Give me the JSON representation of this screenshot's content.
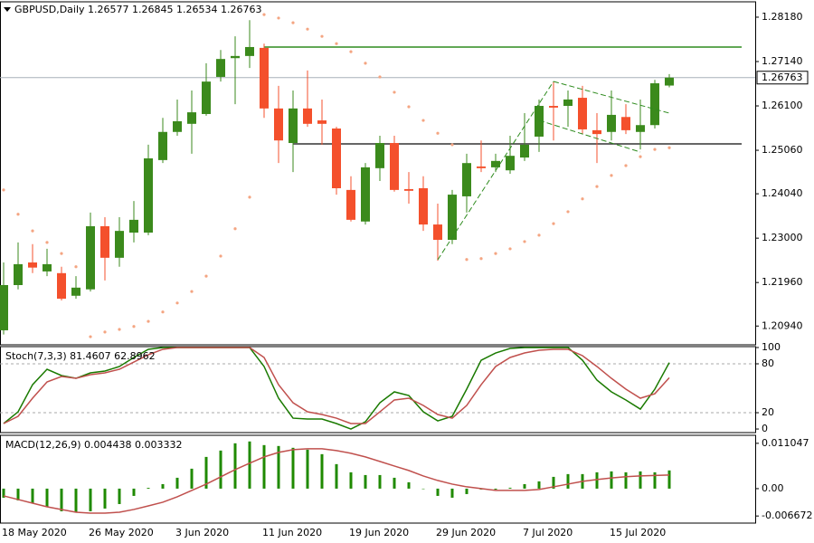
{
  "chart_data": [
    {
      "type": "candlestick",
      "title": "GBPUSD,Daily  1.26577 1.26845 1.26534 1.26763",
      "categories": [
        "18 May 2020",
        null,
        null,
        null,
        null,
        null,
        "26 May 2020",
        null,
        null,
        null,
        null,
        null,
        "3 Jun 2020",
        null,
        null,
        null,
        null,
        null,
        "11 Jun 2020",
        null,
        null,
        null,
        null,
        null,
        "19 Jun 2020",
        null,
        null,
        null,
        null,
        null,
        "29 Jun 2020",
        null,
        null,
        null,
        null,
        null,
        "7 Jul 2020",
        null,
        null,
        null,
        null,
        null,
        "15 Jul 2020",
        null,
        null,
        null,
        null
      ],
      "open": [
        1.2084,
        1.219,
        1.2243,
        1.2222,
        1.2218,
        1.2165,
        1.218,
        1.2328,
        1.2254,
        1.2313,
        1.2313,
        1.2483,
        1.2549,
        1.2568,
        1.2591,
        1.2678,
        1.2722,
        1.2727,
        1.2746,
        1.2604,
        1.2523,
        1.2604,
        1.2576,
        1.2557,
        1.2413,
        1.2339,
        1.2464,
        1.2523,
        1.2415,
        1.2417,
        1.2332,
        1.2296,
        1.2398,
        1.2468,
        1.2466,
        1.2459,
        1.2489,
        1.2538,
        1.261,
        1.261,
        1.2629,
        1.2553,
        1.2549,
        1.2584,
        1.2549,
        1.2565,
        1.26577
      ],
      "high": [
        1.2243,
        1.229,
        1.2286,
        1.2275,
        1.2233,
        1.2211,
        1.236,
        1.2349,
        1.2349,
        1.2387,
        1.2519,
        1.2582,
        1.2625,
        1.2646,
        1.271,
        1.2741,
        1.2773,
        1.2811,
        1.2756,
        1.2657,
        1.2646,
        1.2693,
        1.2625,
        1.2561,
        1.2445,
        1.2476,
        1.254,
        1.254,
        1.2455,
        1.2445,
        1.2381,
        1.2413,
        1.2498,
        1.2529,
        1.2498,
        1.254,
        1.2593,
        1.2625,
        1.2667,
        1.2646,
        1.2657,
        1.2593,
        1.2646,
        1.2614,
        1.2625,
        1.2671,
        1.26845
      ],
      "low": [
        1.2074,
        1.218,
        1.2218,
        1.2211,
        1.2154,
        1.2158,
        1.2175,
        1.2201,
        1.2233,
        1.229,
        1.2307,
        1.2476,
        1.254,
        1.2498,
        1.2587,
        1.2667,
        1.2614,
        1.2699,
        1.2582,
        1.2476,
        1.2455,
        1.2561,
        1.2519,
        1.2402,
        1.2339,
        1.2332,
        1.2434,
        1.2409,
        1.2381,
        1.2317,
        1.2247,
        1.2286,
        1.236,
        1.2455,
        1.2455,
        1.2451,
        1.2481,
        1.2502,
        1.2529,
        1.2561,
        1.2544,
        1.2476,
        1.2529,
        1.2544,
        1.2508,
        1.2557,
        1.26534
      ],
      "close": [
        1.219,
        1.2239,
        1.2231,
        1.2239,
        1.2158,
        1.2184,
        1.2328,
        1.2254,
        1.2317,
        1.2343,
        1.2487,
        1.2549,
        1.2574,
        1.2595,
        1.2667,
        1.272,
        1.2727,
        1.2748,
        1.2604,
        1.2529,
        1.2604,
        1.2568,
        1.2568,
        1.2417,
        1.2343,
        1.2466,
        1.2523,
        1.2413,
        1.2411,
        1.2332,
        1.2296,
        1.2402,
        1.2476,
        1.2464,
        1.2481,
        1.2493,
        1.2519,
        1.261,
        1.2606,
        1.2625,
        1.2555,
        1.2544,
        1.2589,
        1.2553,
        1.2565,
        1.2663,
        1.26763
      ],
      "sar": [
        1.2413,
        1.2356,
        1.2317,
        1.229,
        1.2264,
        1.2233,
        1.2069,
        1.208,
        1.2086,
        1.2093,
        1.2105,
        1.2127,
        1.2148,
        1.2175,
        1.2211,
        1.2258,
        1.2322,
        1.2396,
        1.2824,
        1.2816,
        1.2805,
        1.279,
        1.2773,
        1.2756,
        1.2737,
        1.271,
        1.2678,
        1.2642,
        1.2608,
        1.2576,
        1.2546,
        1.2519,
        1.225,
        1.2252,
        1.2264,
        1.2275,
        1.2292,
        1.2307,
        1.2334,
        1.2362,
        1.2392,
        1.2421,
        1.2447,
        1.247,
        1.2491,
        1.2508,
        1.2512
      ],
      "sar_color": "#f4a582",
      "up_color": "#3b8a1c",
      "down_color": "#f4502c",
      "levels": [
        1.2748,
        1.2521
      ],
      "level_colors": [
        "#2e8b1e",
        "#333333"
      ],
      "last_price": {
        "value": 1.26763,
        "label": "1.26763"
      },
      "ylim": [
        1.205,
        1.2854
      ],
      "yticks": [
        {
          "value": 1.2094,
          "label": "1.20940"
        },
        {
          "value": 1.2196,
          "label": "1.21960"
        },
        {
          "value": 1.23,
          "label": "1.23000"
        },
        {
          "value": 1.2404,
          "label": "1.24040"
        },
        {
          "value": 1.2506,
          "label": "1.25060"
        },
        {
          "value": 1.261,
          "label": "1.26100"
        },
        {
          "value": 1.2714,
          "label": "1.27140"
        },
        {
          "value": 1.2818,
          "label": "1.28180"
        }
      ]
    },
    {
      "type": "line",
      "title": "Stoch(7,3,3) 81.4607 62.8962",
      "series": [
        {
          "color": "#1a7a00",
          "values": [
            6.7,
            21.1,
            54.4,
            73.3,
            65.6,
            62.2,
            68.9,
            71.1,
            76.7,
            87.8,
            97.8,
            100,
            100,
            100,
            100,
            100,
            100,
            100,
            76.7,
            37.8,
            13.3,
            12.2,
            12.2,
            6.7,
            0,
            8.9,
            32.2,
            45.6,
            41.1,
            21.1,
            10,
            15.6,
            48.9,
            84.4,
            93.3,
            98.9,
            100,
            100,
            100,
            100,
            84.4,
            60,
            45.6,
            35.6,
            24.4,
            48.9,
            81.4607
          ]
        },
        {
          "color": "#c0504d",
          "values": [
            6.7,
            15.6,
            37.8,
            57.8,
            64.4,
            62.2,
            66.7,
            68.9,
            73.3,
            82.2,
            91.1,
            97.8,
            100,
            100,
            100,
            100,
            100,
            100,
            87.8,
            54.4,
            32.2,
            21.1,
            17.8,
            13.3,
            6.7,
            6.7,
            21.1,
            35.6,
            37.8,
            28.9,
            17.8,
            13.3,
            28.9,
            54.4,
            76.7,
            87.8,
            93.3,
            96.7,
            97.8,
            97.8,
            90,
            76.7,
            62.2,
            48.9,
            37.8,
            43.3,
            62.8962
          ]
        }
      ],
      "levels": [
        20,
        80
      ],
      "ylim": [
        -4.4,
        101.1
      ],
      "yticks": [
        0,
        20,
        80,
        100
      ]
    },
    {
      "type": "macd",
      "title": "MACD(12,26,9) 0.004438 0.003332",
      "histogram": {
        "color": "#1f8a00",
        "values": [
          -0.00221,
          -0.00287,
          -0.00354,
          -0.00442,
          -0.00552,
          -0.00574,
          -0.00552,
          -0.00486,
          -0.00376,
          -0.00177,
          0.0002,
          0.0011,
          0.00265,
          0.00486,
          0.00773,
          0.00928,
          0.01105,
          0.0115,
          0.01061,
          0.01039,
          0.00995,
          0.0095,
          0.0084,
          0.00597,
          0.00398,
          0.00331,
          0.00331,
          0.00265,
          0.00155,
          -0.0001,
          -0.00177,
          -0.00221,
          -0.00133,
          -0.00022,
          -0.00022,
          0.00022,
          0.0011,
          0.00177,
          0.00287,
          0.00354,
          0.00354,
          0.00398,
          0.0042,
          0.00398,
          0.0042,
          0.00398,
          0.004438
        ]
      },
      "signal": {
        "color": "#c0504d",
        "values": [
          -0.00177,
          -0.00265,
          -0.00354,
          -0.00442,
          -0.00508,
          -0.00574,
          -0.00597,
          -0.00597,
          -0.00574,
          -0.00508,
          -0.0042,
          -0.00331,
          -0.00199,
          -0.00044,
          0.0011,
          0.00287,
          0.00464,
          0.00619,
          0.00773,
          0.00884,
          0.0095,
          0.00972,
          0.00972,
          0.00928,
          0.00862,
          0.00773,
          0.00663,
          0.00552,
          0.00442,
          0.00309,
          0.00199,
          0.0011,
          0.00044,
          0,
          -0.00044,
          -0.00044,
          -0.00044,
          -0.00022,
          0.00044,
          0.0011,
          0.00177,
          0.00221,
          0.0026,
          0.0029,
          0.0031,
          0.0032,
          0.003332
        ]
      },
      "ylim": [
        -0.0084,
        0.013
      ],
      "yticks": [
        {
          "value": -0.006672,
          "label": "-0.006672"
        },
        {
          "value": 0,
          "label": "0.00"
        },
        0.011047
      ]
    }
  ]
}
